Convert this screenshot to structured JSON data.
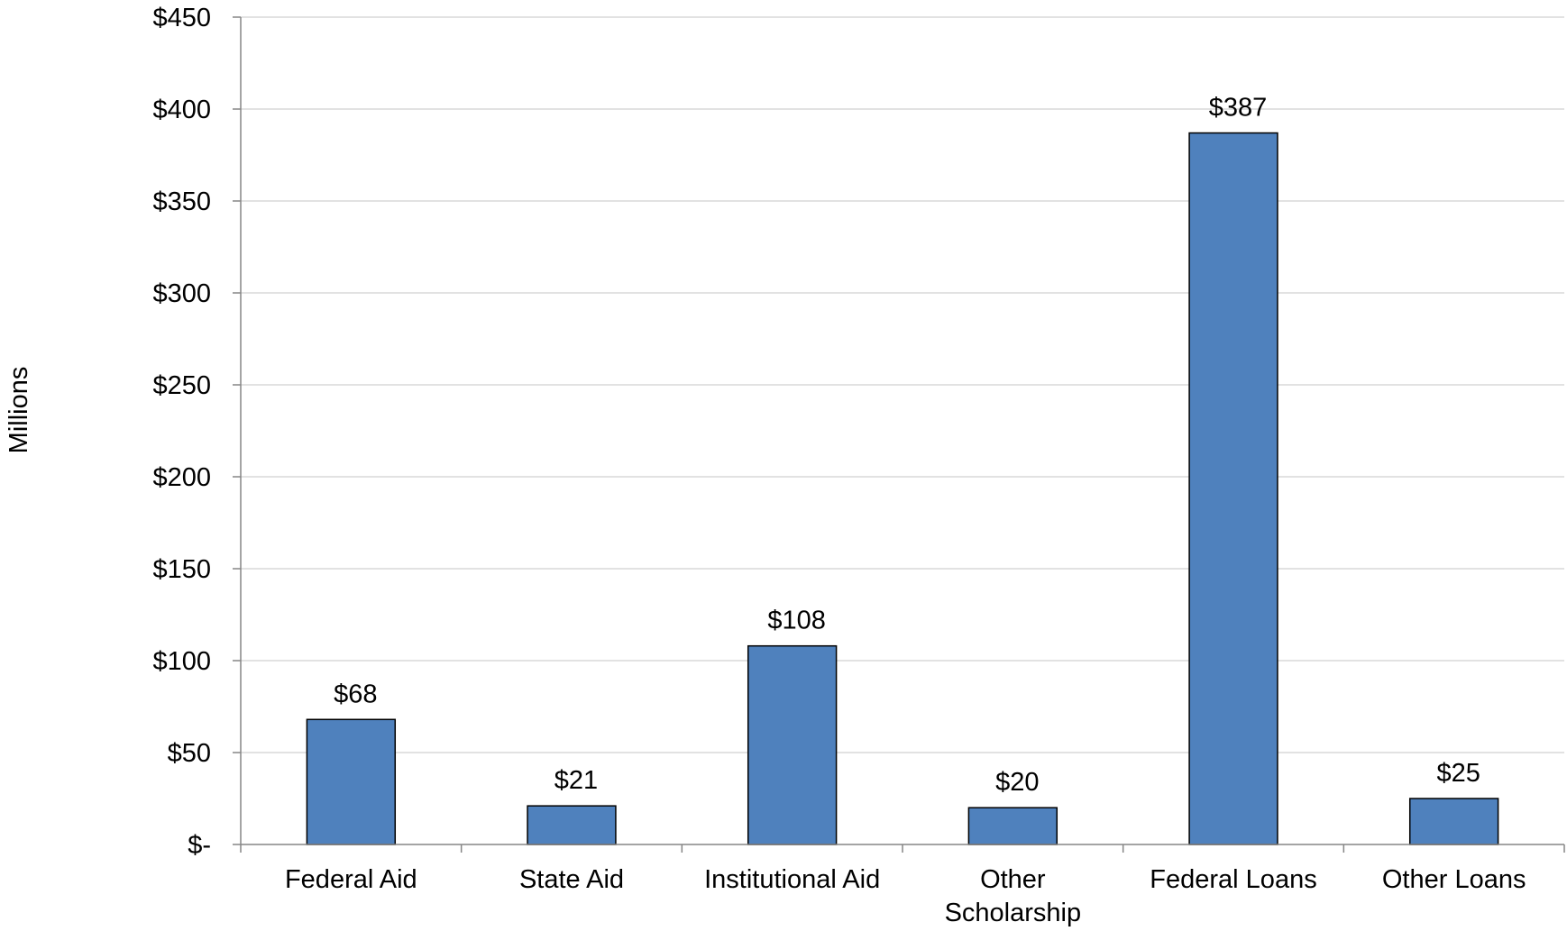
{
  "chart_data": {
    "type": "bar",
    "title": "",
    "xlabel": "",
    "ylabel": "Millions",
    "categories": [
      "Federal Aid",
      "State Aid",
      "Institutional Aid",
      "Other Scholarship",
      "Federal Loans",
      "Other Loans"
    ],
    "category_lines": [
      [
        "Federal Aid"
      ],
      [
        "State Aid"
      ],
      [
        "Institutional Aid"
      ],
      [
        "Other",
        "Scholarship"
      ],
      [
        "Federal Loans"
      ],
      [
        "Other Loans"
      ]
    ],
    "values": [
      68,
      21,
      108,
      20,
      387,
      25
    ],
    "data_labels": [
      "$68",
      "$21",
      "$108",
      "$20",
      "$387",
      "$25"
    ],
    "ylim": [
      0,
      450
    ],
    "yticks": [
      0,
      50,
      100,
      150,
      200,
      250,
      300,
      350,
      400,
      450
    ],
    "ytick_labels": [
      "$-",
      "$50",
      "$100",
      "$150",
      "$200",
      "$250",
      "$300",
      "$350",
      "$400",
      "$450"
    ],
    "grid": true,
    "legend": "none",
    "colors": {
      "bar_fill": "#4F81BD",
      "bar_stroke": "#000000",
      "grid": "#D9D9D9",
      "axis": "#868686"
    }
  }
}
